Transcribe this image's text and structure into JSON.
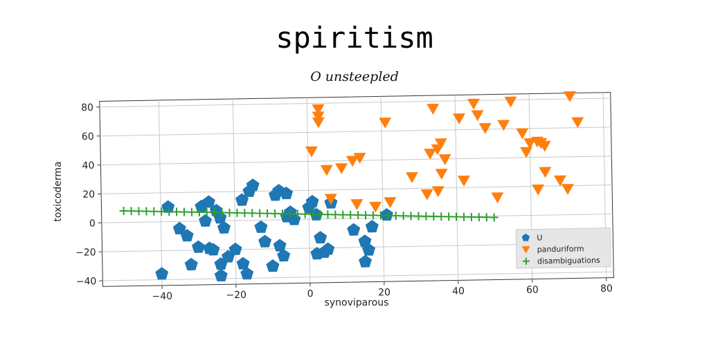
{
  "chart_data": {
    "type": "scatter",
    "title": "spiritism",
    "subtitle": "O unsteepled",
    "xlabel": "synoviparous",
    "ylabel": "toxicoderma",
    "xlim": [
      -56,
      82
    ],
    "ylim": [
      -44,
      84
    ],
    "xticks": [
      -40,
      -20,
      0,
      20,
      40,
      60,
      80
    ],
    "yticks": [
      -40,
      -20,
      0,
      20,
      40,
      60,
      80
    ],
    "grid": true,
    "legend_position": "lower-right",
    "series": [
      {
        "name": "U",
        "marker": "pentagon",
        "color": "#1f77b4",
        "points": [
          [
            -40,
            -36
          ],
          [
            -38,
            10
          ],
          [
            -35,
            -5
          ],
          [
            -33,
            -10
          ],
          [
            -32,
            -30
          ],
          [
            -30,
            -18
          ],
          [
            -29,
            10
          ],
          [
            -28,
            0
          ],
          [
            -27,
            13
          ],
          [
            -27,
            -19
          ],
          [
            -26,
            -20
          ],
          [
            -25,
            7
          ],
          [
            -24,
            2
          ],
          [
            -24,
            -38
          ],
          [
            -24,
            -30
          ],
          [
            -23,
            -5
          ],
          [
            -22,
            -25
          ],
          [
            -20,
            -20
          ],
          [
            -18,
            14
          ],
          [
            -18,
            -30
          ],
          [
            -17,
            -37
          ],
          [
            -16,
            20
          ],
          [
            -15,
            24
          ],
          [
            -13,
            -5
          ],
          [
            -12,
            -15
          ],
          [
            -10,
            -32
          ],
          [
            -9,
            17
          ],
          [
            -8,
            20
          ],
          [
            -8,
            -18
          ],
          [
            -7,
            -25
          ],
          [
            -6,
            18
          ],
          [
            -6,
            2
          ],
          [
            -5,
            5
          ],
          [
            -4,
            0
          ],
          [
            0,
            8
          ],
          [
            1,
            12
          ],
          [
            2,
            3
          ],
          [
            2,
            -24
          ],
          [
            3,
            -13
          ],
          [
            4,
            -23
          ],
          [
            5,
            -21
          ],
          [
            6,
            11
          ],
          [
            12,
            -8
          ],
          [
            15,
            -16
          ],
          [
            15,
            -30
          ],
          [
            16,
            -22
          ],
          [
            17,
            -6
          ],
          [
            21,
            2
          ]
        ]
      },
      {
        "name": "panduriform",
        "marker": "triangle_down",
        "color": "#ff7f0e",
        "points": [
          [
            1,
            47
          ],
          [
            3,
            76
          ],
          [
            3,
            71
          ],
          [
            3,
            67
          ],
          [
            5,
            34
          ],
          [
            6,
            14
          ],
          [
            9,
            35
          ],
          [
            12,
            40
          ],
          [
            13,
            10
          ],
          [
            14,
            42
          ],
          [
            18,
            8
          ],
          [
            21,
            66
          ],
          [
            22,
            11
          ],
          [
            28,
            28
          ],
          [
            32,
            16
          ],
          [
            33,
            44
          ],
          [
            34,
            75
          ],
          [
            35,
            18
          ],
          [
            35,
            47
          ],
          [
            36,
            51
          ],
          [
            36,
            30
          ],
          [
            37,
            40
          ],
          [
            41,
            68
          ],
          [
            42,
            25
          ],
          [
            45,
            78
          ],
          [
            46,
            70
          ],
          [
            48,
            61
          ],
          [
            51,
            13
          ],
          [
            53,
            63
          ],
          [
            55,
            79
          ],
          [
            58,
            57
          ],
          [
            59,
            44
          ],
          [
            60,
            50
          ],
          [
            62,
            18
          ],
          [
            62,
            51
          ],
          [
            63,
            50
          ],
          [
            64,
            30
          ],
          [
            64,
            48
          ],
          [
            68,
            24
          ],
          [
            70,
            18
          ],
          [
            71,
            82
          ],
          [
            73,
            64
          ]
        ]
      },
      {
        "name": "disambiguations",
        "marker": "plus",
        "color": "#2ca02c",
        "line_from": [
          -50,
          8
        ],
        "line_to": [
          50,
          -1
        ],
        "count": 50
      }
    ]
  }
}
